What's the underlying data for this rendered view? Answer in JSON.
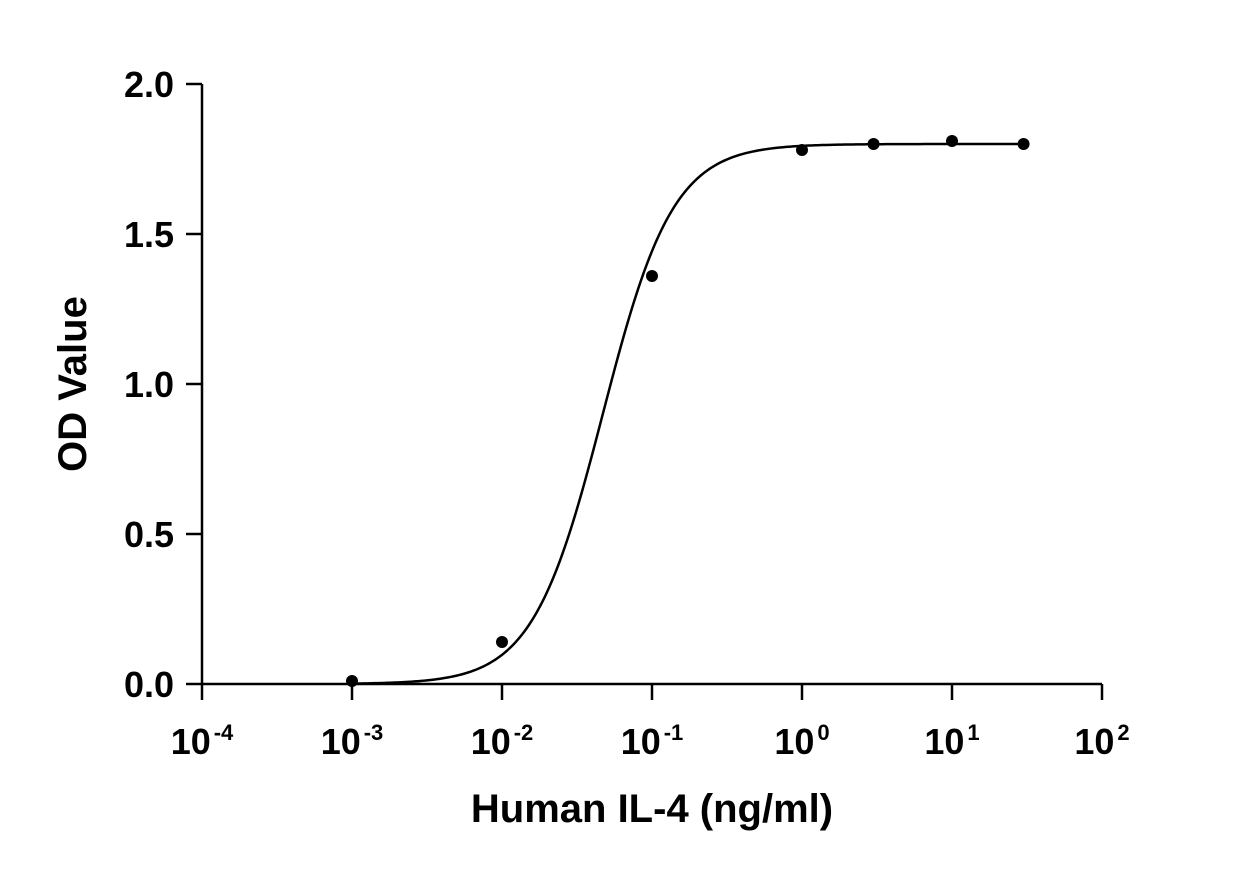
{
  "chart_data": {
    "type": "scatter",
    "title": "",
    "xlabel": "Human IL-4 (ng/ml)",
    "ylabel": "OD Value",
    "x_scale": "log",
    "xlim": [
      0.0001,
      100
    ],
    "ylim": [
      0,
      2.0
    ],
    "x_ticks": [
      {
        "value": 0.0001,
        "base": "10",
        "exp": "-4"
      },
      {
        "value": 0.001,
        "base": "10",
        "exp": "-3"
      },
      {
        "value": 0.01,
        "base": "10",
        "exp": "-2"
      },
      {
        "value": 0.1,
        "base": "10",
        "exp": "-1"
      },
      {
        "value": 1,
        "base": "10",
        "exp": "0"
      },
      {
        "value": 10,
        "base": "10",
        "exp": "1"
      },
      {
        "value": 100,
        "base": "10",
        "exp": "2"
      }
    ],
    "y_ticks": [
      {
        "value": 0.0,
        "label": "0.0"
      },
      {
        "value": 0.5,
        "label": "0.5"
      },
      {
        "value": 1.0,
        "label": "1.0"
      },
      {
        "value": 1.5,
        "label": "1.5"
      },
      {
        "value": 2.0,
        "label": "2.0"
      }
    ],
    "grid": false,
    "series": [
      {
        "points": [
          {
            "x": 0.001,
            "y": 0.01
          },
          {
            "x": 0.01,
            "y": 0.14
          },
          {
            "x": 0.1,
            "y": 1.36
          },
          {
            "x": 1,
            "y": 1.78
          },
          {
            "x": 3,
            "y": 1.8
          },
          {
            "x": 10,
            "y": 1.81
          },
          {
            "x": 30,
            "y": 1.8
          }
        ],
        "fit": {
          "model": "4PL",
          "bottom": 0.0,
          "top": 1.8,
          "ec50": 0.047,
          "hill": 1.85
        },
        "color": "#000000"
      }
    ]
  }
}
